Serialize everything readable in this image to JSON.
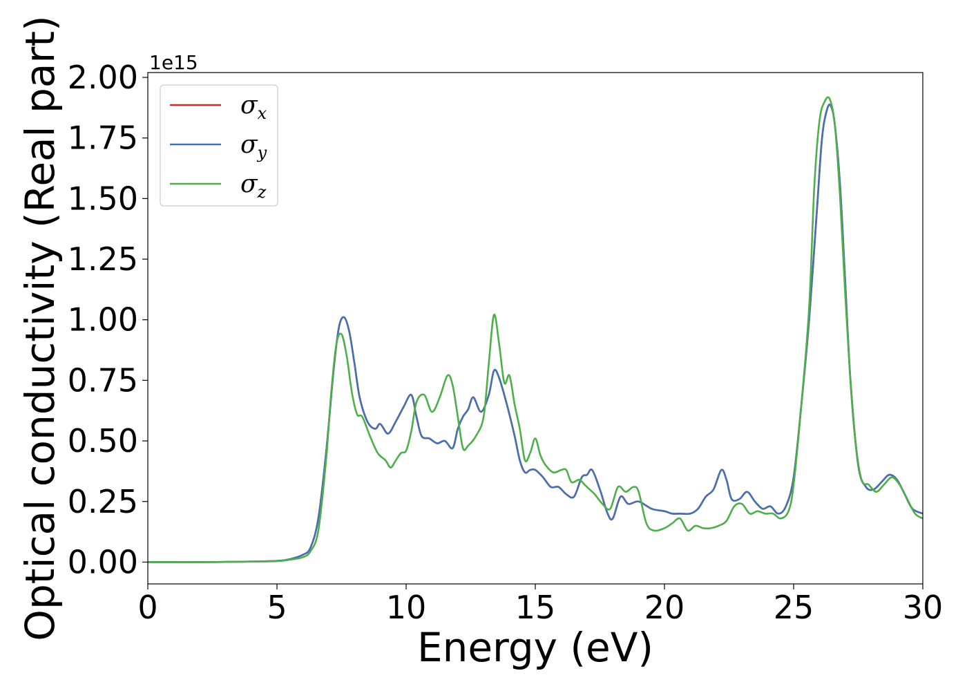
{
  "chart_data": {
    "type": "line",
    "xlabel": "Energy (eV)",
    "ylabel": "Optical conductivity (Real part)",
    "y_offset_label": "1e15",
    "xlim": [
      0,
      30
    ],
    "ylim": [
      -0.09,
      2.02
    ],
    "x_ticks": [
      0,
      5,
      10,
      15,
      20,
      25,
      30
    ],
    "x_tick_labels": [
      "0",
      "5",
      "10",
      "15",
      "20",
      "25",
      "30"
    ],
    "y_ticks": [
      0.0,
      0.25,
      0.5,
      0.75,
      1.0,
      1.25,
      1.5,
      1.75,
      2.0
    ],
    "y_tick_labels": [
      "0.00",
      "0.25",
      "0.50",
      "0.75",
      "1.00",
      "1.25",
      "1.50",
      "1.75",
      "2.00"
    ],
    "grid": false,
    "legend_position": "upper-left",
    "series": [
      {
        "name": "σx",
        "symbol": "σ",
        "subscript": "x",
        "color": "#d62728",
        "x": [
          0,
          2,
          4,
          5,
          5.5,
          6,
          6.3,
          6.6,
          6.9,
          7.2,
          7.4,
          7.6,
          7.8,
          8.0,
          8.2,
          8.5,
          8.8,
          9.0,
          9.3,
          9.6,
          9.9,
          10.2,
          10.4,
          10.6,
          10.9,
          11.2,
          11.5,
          11.8,
          12.0,
          12.2,
          12.4,
          12.6,
          12.9,
          13.2,
          13.4,
          13.6,
          13.9,
          14.2,
          14.4,
          14.6,
          14.8,
          15.0,
          15.3,
          15.6,
          15.9,
          16.2,
          16.5,
          16.8,
          17.0,
          17.2,
          17.5,
          17.8,
          18.0,
          18.3,
          18.6,
          19.0,
          19.5,
          20.0,
          20.3,
          20.6,
          21.0,
          21.3,
          21.6,
          21.9,
          22.2,
          22.4,
          22.6,
          22.9,
          23.2,
          23.5,
          23.8,
          24.1,
          24.4,
          24.7,
          25.0,
          25.3,
          25.6,
          25.9,
          26.1,
          26.3,
          26.45,
          26.6,
          26.8,
          27.0,
          27.2,
          27.5,
          27.8,
          28.1,
          28.4,
          28.7,
          29.0,
          29.3,
          29.6,
          30.0
        ],
        "y": [
          0.0,
          0.0,
          0.002,
          0.005,
          0.012,
          0.03,
          0.06,
          0.18,
          0.45,
          0.8,
          0.97,
          1.01,
          0.95,
          0.82,
          0.68,
          0.58,
          0.55,
          0.57,
          0.53,
          0.58,
          0.64,
          0.69,
          0.6,
          0.52,
          0.51,
          0.49,
          0.5,
          0.47,
          0.55,
          0.6,
          0.63,
          0.68,
          0.62,
          0.69,
          0.79,
          0.76,
          0.65,
          0.52,
          0.42,
          0.37,
          0.38,
          0.38,
          0.35,
          0.31,
          0.31,
          0.28,
          0.27,
          0.35,
          0.36,
          0.38,
          0.3,
          0.2,
          0.18,
          0.27,
          0.24,
          0.25,
          0.22,
          0.21,
          0.2,
          0.2,
          0.2,
          0.22,
          0.27,
          0.3,
          0.38,
          0.34,
          0.26,
          0.26,
          0.29,
          0.25,
          0.22,
          0.23,
          0.2,
          0.23,
          0.35,
          0.65,
          1.0,
          1.45,
          1.75,
          1.87,
          1.88,
          1.8,
          1.55,
          1.15,
          0.75,
          0.4,
          0.31,
          0.3,
          0.33,
          0.36,
          0.34,
          0.28,
          0.22,
          0.2
        ]
      },
      {
        "name": "σy",
        "symbol": "σ",
        "subscript": "y",
        "color": "#4472b0",
        "x": [
          0,
          2,
          4,
          5,
          5.5,
          6,
          6.3,
          6.6,
          6.9,
          7.2,
          7.4,
          7.6,
          7.8,
          8.0,
          8.2,
          8.5,
          8.8,
          9.0,
          9.3,
          9.6,
          9.9,
          10.2,
          10.4,
          10.6,
          10.9,
          11.2,
          11.5,
          11.8,
          12.0,
          12.2,
          12.4,
          12.6,
          12.9,
          13.2,
          13.4,
          13.6,
          13.9,
          14.2,
          14.4,
          14.6,
          14.8,
          15.0,
          15.3,
          15.6,
          15.9,
          16.2,
          16.5,
          16.8,
          17.0,
          17.2,
          17.5,
          17.8,
          18.0,
          18.3,
          18.6,
          19.0,
          19.5,
          20.0,
          20.3,
          20.6,
          21.0,
          21.3,
          21.6,
          21.9,
          22.2,
          22.4,
          22.6,
          22.9,
          23.2,
          23.5,
          23.8,
          24.1,
          24.4,
          24.7,
          25.0,
          25.3,
          25.6,
          25.9,
          26.1,
          26.3,
          26.45,
          26.6,
          26.8,
          27.0,
          27.2,
          27.5,
          27.8,
          28.1,
          28.4,
          28.7,
          29.0,
          29.3,
          29.6,
          30.0
        ],
        "y": [
          0.0,
          0.0,
          0.002,
          0.005,
          0.012,
          0.03,
          0.06,
          0.18,
          0.45,
          0.8,
          0.97,
          1.01,
          0.95,
          0.82,
          0.68,
          0.58,
          0.55,
          0.57,
          0.53,
          0.58,
          0.64,
          0.69,
          0.6,
          0.52,
          0.51,
          0.49,
          0.5,
          0.47,
          0.55,
          0.6,
          0.63,
          0.68,
          0.62,
          0.69,
          0.79,
          0.76,
          0.65,
          0.52,
          0.42,
          0.37,
          0.38,
          0.38,
          0.35,
          0.31,
          0.31,
          0.28,
          0.27,
          0.35,
          0.36,
          0.38,
          0.3,
          0.2,
          0.18,
          0.27,
          0.24,
          0.25,
          0.22,
          0.21,
          0.2,
          0.2,
          0.2,
          0.22,
          0.27,
          0.3,
          0.38,
          0.34,
          0.26,
          0.26,
          0.29,
          0.25,
          0.22,
          0.23,
          0.2,
          0.23,
          0.35,
          0.65,
          1.0,
          1.45,
          1.75,
          1.87,
          1.88,
          1.8,
          1.55,
          1.15,
          0.75,
          0.4,
          0.31,
          0.3,
          0.33,
          0.36,
          0.34,
          0.28,
          0.22,
          0.2
        ]
      },
      {
        "name": "σz",
        "symbol": "σ",
        "subscript": "z",
        "color": "#4daf4a",
        "x": [
          0,
          2,
          4,
          5,
          5.5,
          6,
          6.3,
          6.6,
          6.9,
          7.1,
          7.3,
          7.5,
          7.7,
          7.9,
          8.1,
          8.3,
          8.6,
          8.9,
          9.2,
          9.4,
          9.6,
          9.8,
          10.0,
          10.2,
          10.4,
          10.7,
          11.0,
          11.3,
          11.6,
          11.8,
          12.0,
          12.2,
          12.4,
          12.7,
          13.0,
          13.2,
          13.4,
          13.6,
          13.8,
          14.0,
          14.2,
          14.4,
          14.6,
          14.8,
          15.0,
          15.2,
          15.4,
          15.7,
          16.0,
          16.2,
          16.4,
          16.7,
          16.9,
          17.1,
          17.3,
          17.6,
          17.9,
          18.2,
          18.5,
          18.8,
          19.0,
          19.3,
          19.6,
          20.0,
          20.3,
          20.6,
          20.9,
          21.2,
          21.5,
          21.8,
          22.1,
          22.4,
          22.7,
          23.0,
          23.3,
          23.6,
          23.9,
          24.2,
          24.5,
          24.8,
          25.0,
          25.3,
          25.6,
          25.8,
          26.0,
          26.2,
          26.4,
          26.6,
          26.8,
          27.0,
          27.3,
          27.6,
          27.9,
          28.2,
          28.5,
          28.8,
          29.1,
          29.4,
          29.7,
          30.0
        ],
        "y": [
          0.0,
          0.0,
          0.002,
          0.004,
          0.01,
          0.02,
          0.045,
          0.13,
          0.42,
          0.7,
          0.9,
          0.94,
          0.85,
          0.7,
          0.61,
          0.6,
          0.52,
          0.45,
          0.42,
          0.39,
          0.42,
          0.45,
          0.46,
          0.54,
          0.66,
          0.69,
          0.62,
          0.68,
          0.77,
          0.73,
          0.6,
          0.47,
          0.48,
          0.52,
          0.6,
          0.82,
          1.02,
          0.9,
          0.74,
          0.77,
          0.65,
          0.55,
          0.42,
          0.45,
          0.51,
          0.44,
          0.4,
          0.37,
          0.38,
          0.38,
          0.33,
          0.34,
          0.32,
          0.3,
          0.28,
          0.24,
          0.22,
          0.31,
          0.29,
          0.31,
          0.29,
          0.16,
          0.13,
          0.14,
          0.16,
          0.18,
          0.13,
          0.15,
          0.14,
          0.14,
          0.15,
          0.17,
          0.23,
          0.24,
          0.2,
          0.21,
          0.2,
          0.2,
          0.18,
          0.21,
          0.32,
          0.65,
          1.05,
          1.55,
          1.82,
          1.9,
          1.91,
          1.8,
          1.5,
          1.1,
          0.6,
          0.35,
          0.32,
          0.29,
          0.32,
          0.35,
          0.32,
          0.26,
          0.2,
          0.18
        ]
      }
    ]
  }
}
